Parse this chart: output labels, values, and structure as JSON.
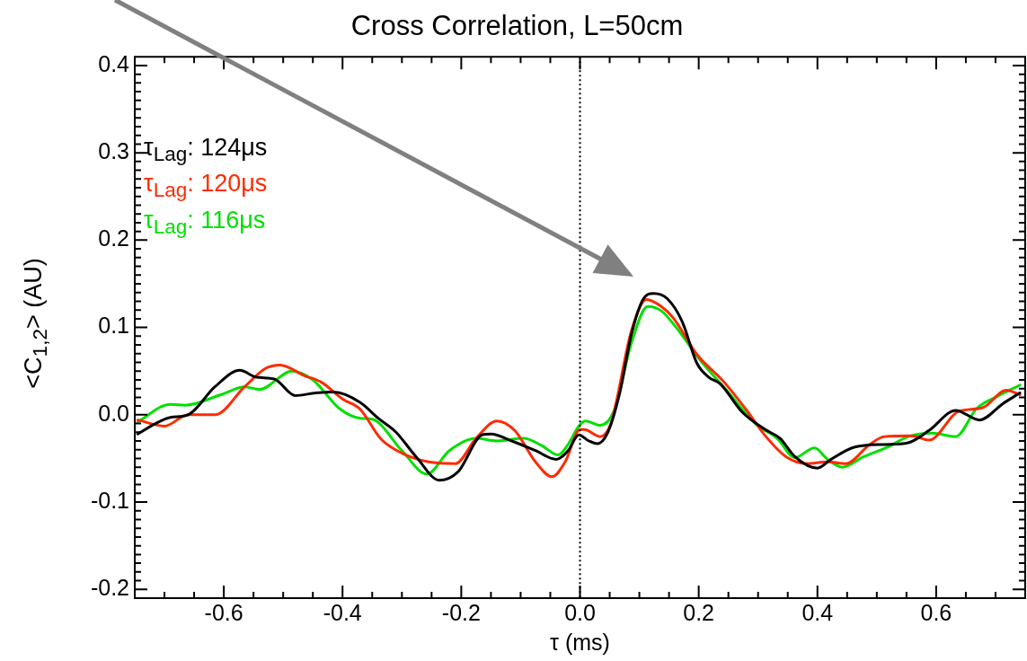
{
  "chart_data": {
    "type": "line",
    "title": "Cross Correlation, L=50cm",
    "xlabel": "τ (ms)",
    "ylabel": "<C$_{1,2}$> (AU)",
    "xlim": [
      -0.75,
      0.75
    ],
    "ylim": [
      -0.21,
      0.41
    ],
    "xticks": [
      -0.6,
      -0.4,
      -0.2,
      {
        "value": 0,
        "label": "0.0"
      },
      0.2,
      0.4,
      0.6,
      {
        "value": -0.7,
        "label": null
      },
      {
        "value": -0.65,
        "label": null
      },
      {
        "value": -0.55,
        "label": null
      },
      {
        "value": -0.5,
        "label": null
      },
      {
        "value": -0.45,
        "label": null
      },
      {
        "value": -0.35,
        "label": null
      },
      {
        "value": -0.3,
        "label": null
      },
      {
        "value": -0.25,
        "label": null
      },
      {
        "value": -0.15,
        "label": null
      },
      {
        "value": -0.1,
        "label": null
      },
      {
        "value": -0.05,
        "label": null
      },
      {
        "value": 0.05,
        "label": null
      },
      {
        "value": 0.1,
        "label": null
      },
      {
        "value": 0.15,
        "label": null
      },
      {
        "value": 0.25,
        "label": null
      },
      {
        "value": 0.3,
        "label": null
      },
      {
        "value": 0.35,
        "label": null
      },
      {
        "value": 0.45,
        "label": null
      },
      {
        "value": 0.5,
        "label": null
      },
      {
        "value": 0.55,
        "label": null
      },
      {
        "value": 0.65,
        "label": null
      },
      {
        "value": 0.7,
        "label": null
      }
    ],
    "yticks": [
      -0.2,
      -0.1,
      {
        "value": 0,
        "label": "0.0"
      },
      0.1,
      0.2,
      0.3,
      0.4,
      {
        "value": -0.19,
        "label": null
      },
      {
        "value": -0.18,
        "label": null
      },
      {
        "value": -0.17,
        "label": null
      },
      {
        "value": -0.16,
        "label": null
      },
      {
        "value": -0.15,
        "label": null
      },
      {
        "value": -0.14,
        "label": null
      },
      {
        "value": -0.13,
        "label": null
      },
      {
        "value": -0.12,
        "label": null
      },
      {
        "value": -0.11,
        "label": null
      },
      {
        "value": -0.09,
        "label": null
      },
      {
        "value": -0.08,
        "label": null
      },
      {
        "value": -0.07,
        "label": null
      },
      {
        "value": -0.06,
        "label": null
      },
      {
        "value": -0.05,
        "label": null
      },
      {
        "value": -0.04,
        "label": null
      },
      {
        "value": -0.03,
        "label": null
      },
      {
        "value": -0.02,
        "label": null
      },
      {
        "value": -0.01,
        "label": null
      },
      {
        "value": 0.01,
        "label": null
      },
      {
        "value": 0.02,
        "label": null
      },
      {
        "value": 0.03,
        "label": null
      },
      {
        "value": 0.04,
        "label": null
      },
      {
        "value": 0.05,
        "label": null
      },
      {
        "value": 0.06,
        "label": null
      },
      {
        "value": 0.07,
        "label": null
      },
      {
        "value": 0.08,
        "label": null
      },
      {
        "value": 0.09,
        "label": null
      },
      {
        "value": 0.11,
        "label": null
      },
      {
        "value": 0.12,
        "label": null
      },
      {
        "value": 0.13,
        "label": null
      },
      {
        "value": 0.14,
        "label": null
      },
      {
        "value": 0.15,
        "label": null
      },
      {
        "value": 0.16,
        "label": null
      },
      {
        "value": 0.17,
        "label": null
      },
      {
        "value": 0.18,
        "label": null
      },
      {
        "value": 0.19,
        "label": null
      },
      {
        "value": 0.21,
        "label": null
      },
      {
        "value": 0.22,
        "label": null
      },
      {
        "value": 0.23,
        "label": null
      },
      {
        "value": 0.24,
        "label": null
      },
      {
        "value": 0.25,
        "label": null
      },
      {
        "value": 0.26,
        "label": null
      },
      {
        "value": 0.27,
        "label": null
      },
      {
        "value": 0.28,
        "label": null
      },
      {
        "value": 0.29,
        "label": null
      },
      {
        "value": 0.31,
        "label": null
      },
      {
        "value": 0.32,
        "label": null
      },
      {
        "value": 0.33,
        "label": null
      },
      {
        "value": 0.34,
        "label": null
      },
      {
        "value": 0.35,
        "label": null
      },
      {
        "value": 0.36,
        "label": null
      },
      {
        "value": 0.37,
        "label": null
      },
      {
        "value": 0.38,
        "label": null
      },
      {
        "value": 0.39,
        "label": null
      }
    ],
    "grid": false,
    "legend": "top left",
    "marker": "none",
    "line_style": "solid",
    "ref_lines": [
      {
        "axis": "x",
        "value": 0,
        "label": null,
        "color": "#000000",
        "line_style": "dotted"
      }
    ],
    "series": [
      {
        "name": "τ$_{Lag}$: 124μs",
        "color": "#000000",
        "x": [
          -0.745,
          -0.715,
          -0.69,
          -0.66,
          -0.615,
          -0.573,
          -0.545,
          -0.515,
          -0.48,
          -0.445,
          -0.415,
          -0.37,
          -0.34,
          -0.31,
          -0.275,
          -0.237,
          -0.205,
          -0.165,
          -0.15,
          -0.115,
          -0.075,
          -0.04,
          -0.02,
          -0.002,
          0.015,
          0.029,
          0.047,
          0.067,
          0.087,
          0.107,
          0.124,
          0.147,
          0.172,
          0.197,
          0.217,
          0.237,
          0.272,
          0.312,
          0.337,
          0.362,
          0.4,
          0.423,
          0.463,
          0.513,
          0.553,
          0.588,
          0.633,
          0.673,
          0.713,
          0.741
        ],
        "values": [
          -0.022,
          -0.01,
          -0.003,
          0.0,
          0.032,
          0.051,
          0.043,
          0.041,
          0.022,
          0.025,
          0.026,
          0.014,
          -0.004,
          -0.02,
          -0.049,
          -0.075,
          -0.065,
          -0.023,
          -0.022,
          -0.03,
          -0.041,
          -0.051,
          -0.041,
          -0.023,
          -0.03,
          -0.033,
          -0.02,
          0.025,
          0.093,
          0.133,
          0.139,
          0.133,
          0.107,
          0.059,
          0.043,
          0.035,
          0.004,
          -0.017,
          -0.027,
          -0.048,
          -0.061,
          -0.051,
          -0.037,
          -0.034,
          -0.032,
          -0.018,
          0.005,
          -0.006,
          0.013,
          0.025
        ]
      },
      {
        "name": "τ$_{Lag}$: 120μs",
        "color": "#ff2a00",
        "x": [
          -0.745,
          -0.7,
          -0.66,
          -0.615,
          -0.565,
          -0.53,
          -0.505,
          -0.465,
          -0.435,
          -0.4,
          -0.37,
          -0.335,
          -0.3,
          -0.255,
          -0.21,
          -0.175,
          -0.14,
          -0.11,
          -0.075,
          -0.047,
          -0.025,
          0.0,
          0.007,
          0.034,
          0.052,
          0.087,
          0.112,
          0.137,
          0.157,
          0.197,
          0.242,
          0.282,
          0.312,
          0.347,
          0.382,
          0.417,
          0.448,
          0.488,
          0.513,
          0.558,
          0.588,
          0.638,
          0.678,
          0.718,
          0.741
        ],
        "values": [
          -0.006,
          -0.013,
          0.0,
          0.0,
          0.032,
          0.053,
          0.057,
          0.045,
          0.037,
          0.018,
          0.006,
          -0.028,
          -0.044,
          -0.054,
          -0.056,
          -0.027,
          -0.007,
          -0.018,
          -0.054,
          -0.071,
          -0.054,
          -0.017,
          -0.017,
          -0.025,
          -0.01,
          0.097,
          0.132,
          0.124,
          0.111,
          0.069,
          0.038,
          0.004,
          -0.024,
          -0.048,
          -0.056,
          -0.054,
          -0.056,
          -0.034,
          -0.025,
          -0.024,
          -0.029,
          0.004,
          0.008,
          0.028,
          0.023
        ]
      },
      {
        "name": "τ$_{Lag}$: 116μs",
        "color": "#00e000",
        "x": [
          -0.745,
          -0.69,
          -0.665,
          -0.605,
          -0.565,
          -0.54,
          -0.485,
          -0.45,
          -0.405,
          -0.37,
          -0.35,
          -0.3,
          -0.258,
          -0.22,
          -0.175,
          -0.14,
          -0.095,
          -0.065,
          -0.037,
          -0.02,
          -0.002,
          0.009,
          0.034,
          0.057,
          0.087,
          0.114,
          0.137,
          0.162,
          0.202,
          0.247,
          0.297,
          0.332,
          0.362,
          0.395,
          0.417,
          0.442,
          0.478,
          0.518,
          0.553,
          0.593,
          0.633,
          0.668,
          0.703,
          0.741
        ],
        "values": [
          -0.008,
          0.012,
          0.011,
          0.023,
          0.032,
          0.029,
          0.05,
          0.04,
          0.007,
          -0.004,
          -0.005,
          -0.041,
          -0.068,
          -0.041,
          -0.027,
          -0.03,
          -0.027,
          -0.035,
          -0.046,
          -0.034,
          -0.013,
          -0.007,
          -0.012,
          0.004,
          0.083,
          0.124,
          0.119,
          0.1,
          0.063,
          0.028,
          -0.011,
          -0.027,
          -0.049,
          -0.038,
          -0.051,
          -0.06,
          -0.048,
          -0.037,
          -0.025,
          -0.021,
          -0.025,
          0.007,
          0.021,
          0.034
        ]
      }
    ]
  }
}
